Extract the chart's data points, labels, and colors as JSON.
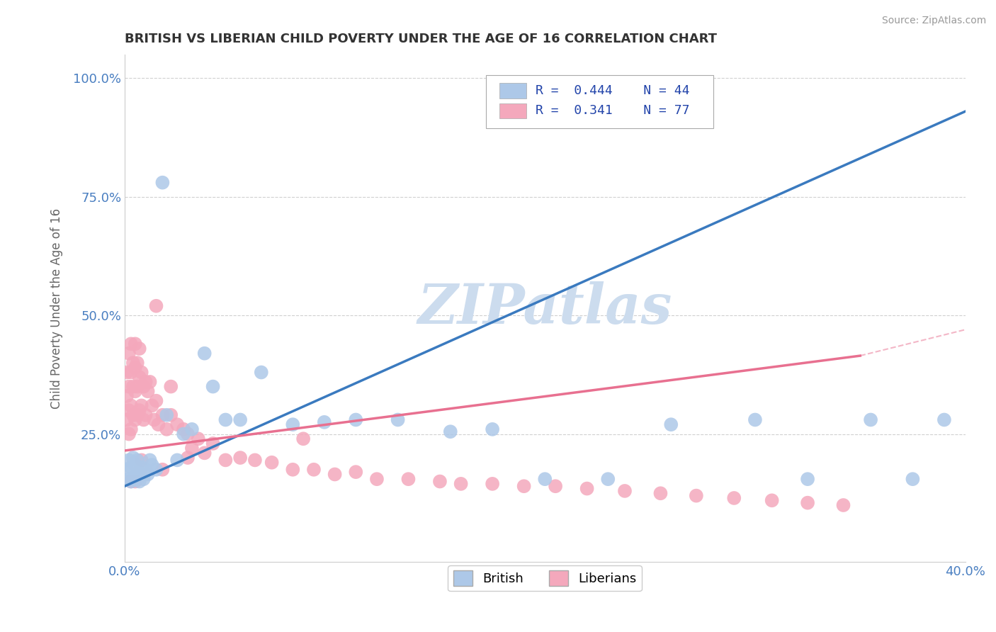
{
  "title": "BRITISH VS LIBERIAN CHILD POVERTY UNDER THE AGE OF 16 CORRELATION CHART",
  "source": "Source: ZipAtlas.com",
  "ylabel": "Child Poverty Under the Age of 16",
  "xlim": [
    0.0,
    0.4
  ],
  "ylim": [
    -0.02,
    1.05
  ],
  "british_R": 0.444,
  "british_N": 44,
  "liberian_R": 0.341,
  "liberian_N": 77,
  "british_color": "#adc8e8",
  "liberian_color": "#f4a8bc",
  "trend_british_color": "#3a7abf",
  "trend_liberian_color": "#e87090",
  "watermark": "ZIPatlas",
  "watermark_color": "#ccdcee",
  "british_x": [
    0.001,
    0.002,
    0.002,
    0.003,
    0.003,
    0.004,
    0.004,
    0.005,
    0.005,
    0.006,
    0.006,
    0.007,
    0.007,
    0.008,
    0.009,
    0.01,
    0.011,
    0.012,
    0.013,
    0.015,
    0.018,
    0.02,
    0.025,
    0.028,
    0.032,
    0.038,
    0.042,
    0.048,
    0.055,
    0.065,
    0.08,
    0.095,
    0.11,
    0.13,
    0.155,
    0.175,
    0.2,
    0.23,
    0.26,
    0.3,
    0.325,
    0.355,
    0.375,
    0.39
  ],
  "british_y": [
    0.175,
    0.155,
    0.195,
    0.15,
    0.18,
    0.155,
    0.2,
    0.16,
    0.185,
    0.155,
    0.195,
    0.15,
    0.17,
    0.18,
    0.155,
    0.175,
    0.165,
    0.195,
    0.185,
    0.175,
    0.78,
    0.29,
    0.195,
    0.25,
    0.26,
    0.42,
    0.35,
    0.28,
    0.28,
    0.38,
    0.27,
    0.275,
    0.28,
    0.28,
    0.255,
    0.26,
    0.155,
    0.155,
    0.27,
    0.28,
    0.155,
    0.28,
    0.155,
    0.28
  ],
  "liberian_x": [
    0.001,
    0.001,
    0.001,
    0.002,
    0.002,
    0.002,
    0.002,
    0.003,
    0.003,
    0.003,
    0.003,
    0.004,
    0.004,
    0.004,
    0.005,
    0.005,
    0.005,
    0.005,
    0.006,
    0.006,
    0.006,
    0.007,
    0.007,
    0.007,
    0.008,
    0.008,
    0.009,
    0.009,
    0.01,
    0.01,
    0.011,
    0.012,
    0.013,
    0.014,
    0.015,
    0.016,
    0.018,
    0.02,
    0.022,
    0.025,
    0.028,
    0.03,
    0.032,
    0.035,
    0.038,
    0.042,
    0.048,
    0.055,
    0.062,
    0.07,
    0.08,
    0.09,
    0.1,
    0.11,
    0.12,
    0.135,
    0.15,
    0.16,
    0.175,
    0.19,
    0.205,
    0.22,
    0.238,
    0.255,
    0.272,
    0.29,
    0.308,
    0.325,
    0.342,
    0.085,
    0.015,
    0.008,
    0.018,
    0.022,
    0.03,
    0.005,
    0.003
  ],
  "liberian_y": [
    0.38,
    0.33,
    0.28,
    0.42,
    0.35,
    0.3,
    0.25,
    0.44,
    0.38,
    0.31,
    0.26,
    0.4,
    0.35,
    0.29,
    0.44,
    0.39,
    0.34,
    0.28,
    0.4,
    0.35,
    0.29,
    0.43,
    0.37,
    0.3,
    0.38,
    0.31,
    0.35,
    0.28,
    0.36,
    0.29,
    0.34,
    0.36,
    0.31,
    0.28,
    0.32,
    0.27,
    0.29,
    0.26,
    0.29,
    0.27,
    0.26,
    0.25,
    0.22,
    0.24,
    0.21,
    0.23,
    0.195,
    0.2,
    0.195,
    0.19,
    0.175,
    0.175,
    0.165,
    0.17,
    0.155,
    0.155,
    0.15,
    0.145,
    0.145,
    0.14,
    0.14,
    0.135,
    0.13,
    0.125,
    0.12,
    0.115,
    0.11,
    0.105,
    0.1,
    0.24,
    0.52,
    0.195,
    0.175,
    0.35,
    0.2,
    0.15,
    0.15
  ],
  "trend_british_x0": 0.0,
  "trend_british_x1": 0.4,
  "trend_british_y0": 0.14,
  "trend_british_y1": 0.93,
  "trend_liberian_x0": 0.0,
  "trend_liberian_x1": 0.35,
  "trend_liberian_y0": 0.215,
  "trend_liberian_y1": 0.415
}
